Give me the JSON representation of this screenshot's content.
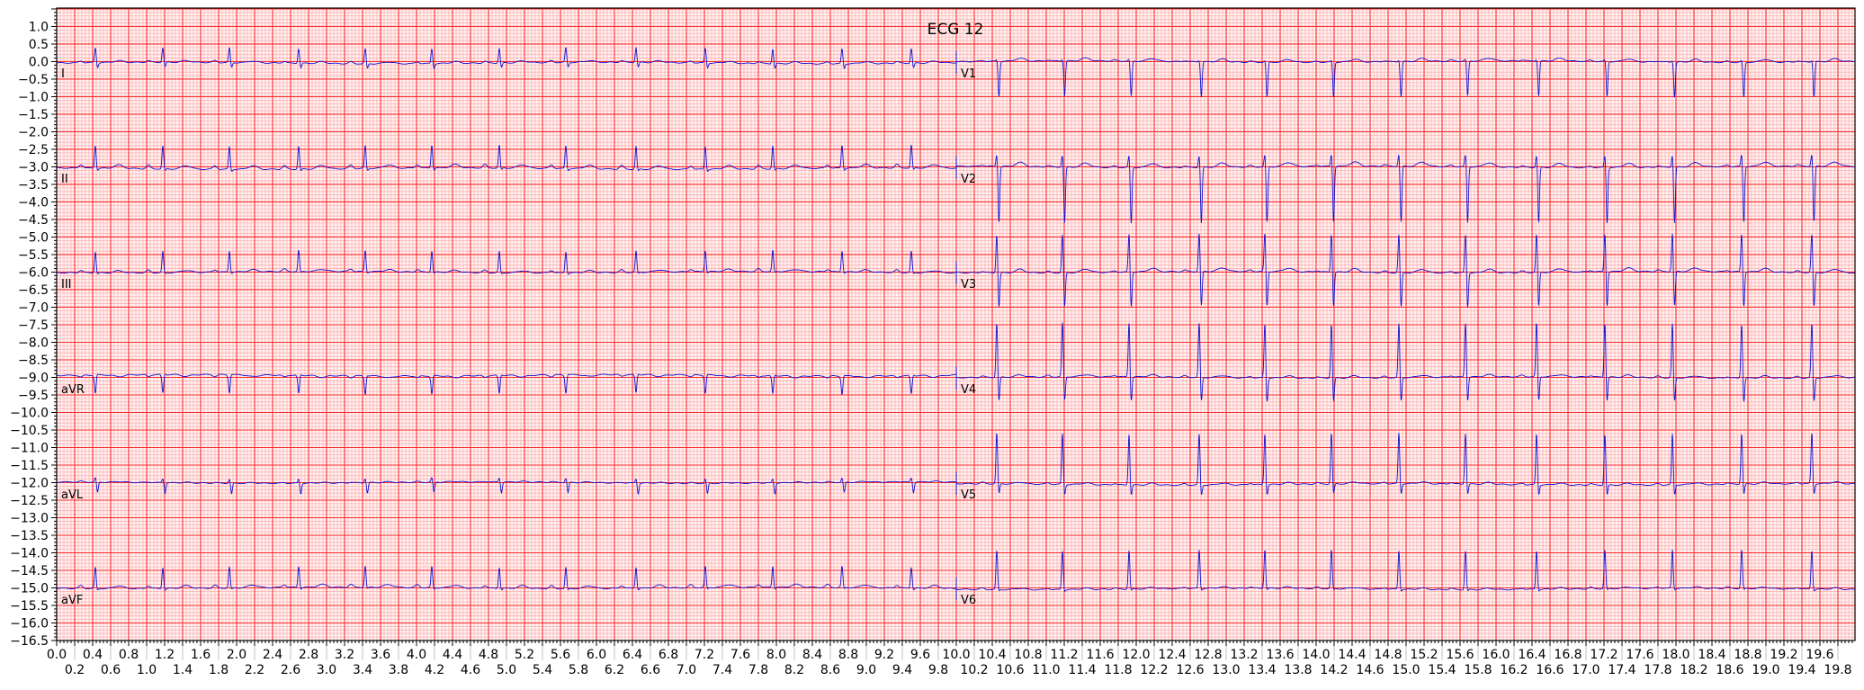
{
  "chart_data": {
    "type": "line",
    "title": "ECG 12",
    "xlabel": "",
    "ylabel": "",
    "xlim": [
      0,
      19.99
    ],
    "ylim": [
      -16.5,
      1.525
    ],
    "grid": true,
    "x_major_step": 0.2,
    "x_minor_step": 0.04,
    "y_major_step": 0.5,
    "y_minor_step": 0.1,
    "x_tick_labels": [
      "0.0",
      "0.2",
      "0.4",
      "0.6",
      "0.8",
      "1.0",
      "1.2",
      "1.4",
      "1.6",
      "1.8",
      "2.0",
      "2.2",
      "2.4",
      "2.6",
      "2.8",
      "3.0",
      "3.2",
      "3.4",
      "3.6",
      "3.8",
      "4.0",
      "4.2",
      "4.4",
      "4.6",
      "4.8",
      "5.0",
      "5.2",
      "5.4",
      "5.6",
      "5.8",
      "6.0",
      "6.2",
      "6.4",
      "6.6",
      "6.8",
      "7.0",
      "7.2",
      "7.4",
      "7.6",
      "7.8",
      "8.0",
      "8.2",
      "8.4",
      "8.6",
      "8.8",
      "9.0",
      "9.2",
      "9.4",
      "9.6",
      "9.8",
      "10.0",
      "10.2",
      "10.4",
      "10.6",
      "10.8",
      "11.0",
      "11.2",
      "11.4",
      "11.6",
      "11.8",
      "12.0",
      "12.2",
      "12.4",
      "12.6",
      "12.8",
      "13.0",
      "13.2",
      "13.4",
      "13.6",
      "13.8",
      "14.0",
      "14.2",
      "14.4",
      "14.6",
      "14.8",
      "15.0",
      "15.2",
      "15.4",
      "15.6",
      "15.8",
      "16.0",
      "16.2",
      "16.4",
      "16.6",
      "16.8",
      "17.0",
      "17.2",
      "17.4",
      "17.6",
      "17.8",
      "18.0",
      "18.2",
      "18.4",
      "18.6",
      "18.8",
      "19.0",
      "19.2",
      "19.4",
      "19.6",
      "19.8"
    ],
    "y_tick_labels": [
      "1.0",
      "0.5",
      "0.0",
      "−0.5",
      "−1.0",
      "−1.5",
      "−2.0",
      "−2.5",
      "−3.0",
      "−3.5",
      "−4.0",
      "−4.5",
      "−5.0",
      "−5.5",
      "−6.0",
      "−6.5",
      "−7.0",
      "−7.5",
      "−8.0",
      "−8.5",
      "−9.0",
      "−9.5",
      "−10.0",
      "−10.5",
      "−11.0",
      "−11.5",
      "−12.0",
      "−12.5",
      "−13.0",
      "−13.5",
      "−14.0",
      "−14.5",
      "−15.0",
      "−15.5",
      "−16.0",
      "−16.5"
    ],
    "colors": {
      "trace": "#1010d0",
      "grid_major": "#ff2a2a",
      "grid_minor": "#ffb0b0",
      "background": "#fff4f4"
    },
    "beat_times_left": [
      0.43,
      1.18,
      1.92,
      2.69,
      3.43,
      4.17,
      4.92,
      5.66,
      6.44,
      7.21,
      7.96,
      8.73,
      9.5
    ],
    "beat_times_right": [
      10.45,
      11.18,
      11.92,
      12.7,
      13.43,
      14.17,
      14.92,
      15.66,
      16.45,
      17.21,
      17.96,
      18.73,
      19.51
    ],
    "leads": [
      {
        "name": "I",
        "offset": 0,
        "baseline": -0.04,
        "t_range": [
          0,
          10
        ],
        "side": "left",
        "p": 0.05,
        "q": 0,
        "r": 0.42,
        "s": -0.14,
        "t": 0.05
      },
      {
        "name": "II",
        "offset": -3,
        "baseline": -0.05,
        "t_range": [
          0,
          10
        ],
        "side": "left",
        "p": 0.1,
        "q": 0,
        "r": 0.65,
        "s": -0.06,
        "t": 0.1
      },
      {
        "name": "III",
        "offset": -6,
        "baseline": 0.0,
        "t_range": [
          0,
          10
        ],
        "side": "left",
        "p": 0.07,
        "q": 0,
        "r": 0.6,
        "s": -0.04,
        "t": 0.06
      },
      {
        "name": "aVR",
        "offset": -9,
        "baseline": 0.06,
        "t_range": [
          0,
          10
        ],
        "side": "left",
        "p": -0.05,
        "q": 0.03,
        "r": -0.52,
        "s": 0.02,
        "t": -0.05
      },
      {
        "name": "aVL",
        "offset": -12,
        "baseline": 0.0,
        "t_range": [
          0,
          10
        ],
        "side": "left",
        "p": 0.02,
        "q": 0,
        "r": 0.12,
        "s": -0.3,
        "t": 0.02
      },
      {
        "name": "aVF",
        "offset": -15,
        "baseline": 0.0,
        "t_range": [
          0,
          10
        ],
        "side": "left",
        "p": 0.08,
        "q": 0,
        "r": 0.6,
        "s": -0.05,
        "t": 0.08
      },
      {
        "name": "V1",
        "offset": 0,
        "baseline": 0.0,
        "t_range": [
          10,
          20
        ],
        "side": "right",
        "p": 0.03,
        "q": 0,
        "r": 0.05,
        "s": -1.0,
        "t": 0.08
      },
      {
        "name": "V2",
        "offset": -3,
        "baseline": 0.0,
        "t_range": [
          10,
          20
        ],
        "side": "right",
        "p": 0.04,
        "q": 0,
        "r": 0.35,
        "s": -1.6,
        "t": 0.12
      },
      {
        "name": "V3",
        "offset": -6,
        "baseline": 0.0,
        "t_range": [
          10,
          20
        ],
        "side": "right",
        "p": 0.04,
        "q": 0,
        "r": 1.1,
        "s": -1.0,
        "t": 0.1
      },
      {
        "name": "V4",
        "offset": -9,
        "baseline": 0.0,
        "t_range": [
          10,
          20
        ],
        "side": "right",
        "p": 0.04,
        "q": 0,
        "r": 1.55,
        "s": -0.7,
        "t": 0.06
      },
      {
        "name": "V5",
        "offset": -12,
        "baseline": -0.05,
        "t_range": [
          10,
          20
        ],
        "side": "right",
        "p": 0.04,
        "q": 0,
        "r": 1.45,
        "s": -0.3,
        "t": 0.05
      },
      {
        "name": "V6",
        "offset": -15,
        "baseline": -0.03,
        "t_range": [
          10,
          20
        ],
        "side": "right",
        "p": 0.04,
        "q": 0,
        "r": 1.1,
        "s": -0.05,
        "t": 0.04
      }
    ]
  }
}
